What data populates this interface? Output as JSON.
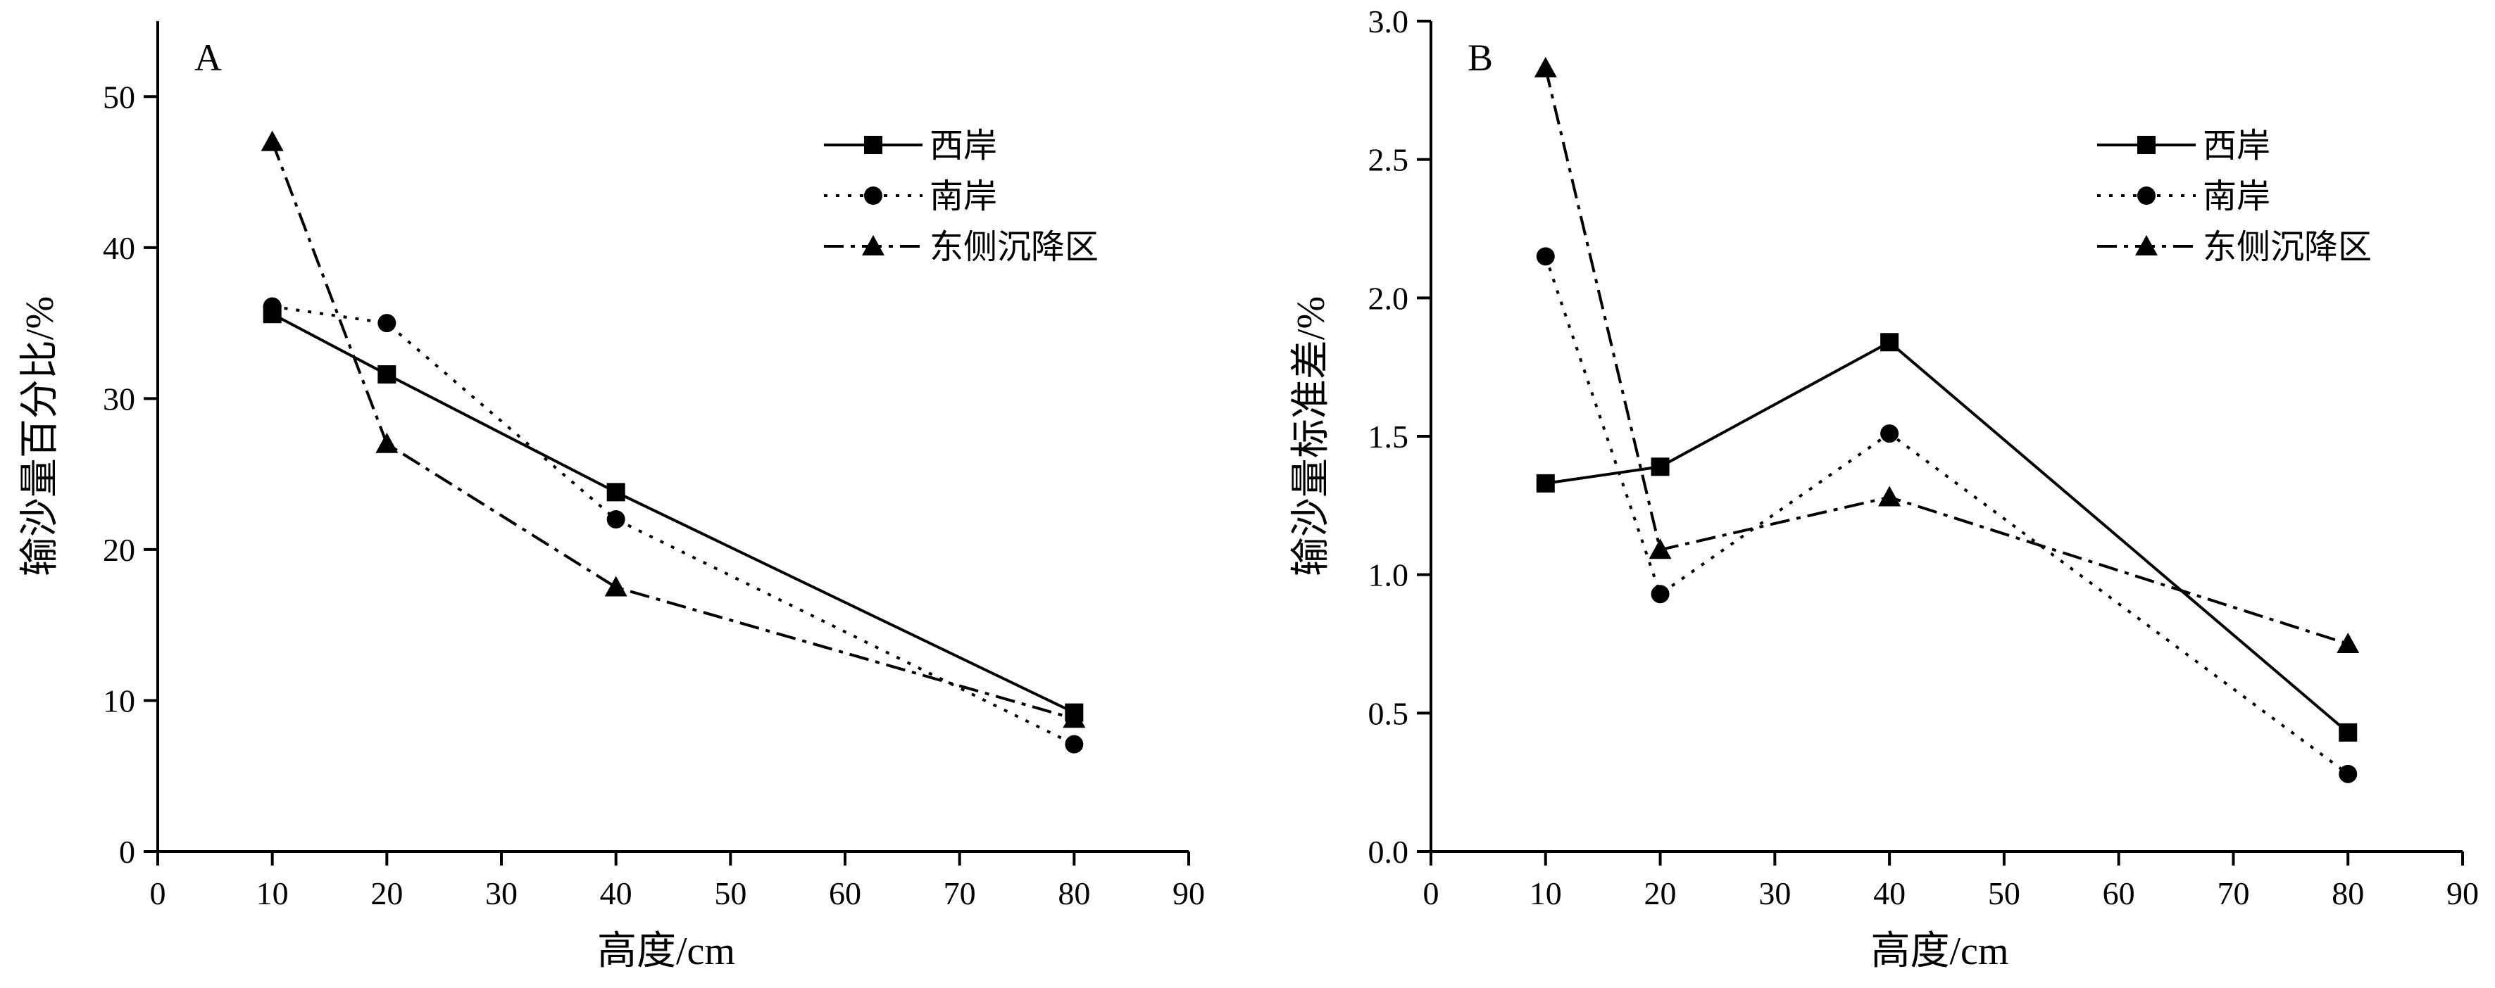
{
  "chart_data": [
    {
      "panel": "A",
      "type": "line",
      "xlabel": "高度/cm",
      "ylabel": "输沙量百分比/%",
      "xlim": [
        0,
        90
      ],
      "ylim": [
        0,
        55
      ],
      "xticks": [
        0,
        10,
        20,
        30,
        40,
        50,
        60,
        70,
        80,
        90
      ],
      "yticks": [
        0,
        10,
        20,
        30,
        40,
        50
      ],
      "legend_position": "top-right",
      "x": [
        10,
        20,
        40,
        80
      ],
      "series": [
        {
          "name": "西岸",
          "values": [
            35.6,
            31.6,
            23.8,
            9.2
          ],
          "marker": "square",
          "line": "solid"
        },
        {
          "name": "南岸",
          "values": [
            36.1,
            35.0,
            22.0,
            7.1
          ],
          "marker": "circle",
          "line": "dotted"
        },
        {
          "name": "东侧沉降区",
          "values": [
            47.0,
            27.0,
            17.5,
            8.8
          ],
          "marker": "triangle",
          "line": "dashdot"
        }
      ]
    },
    {
      "panel": "B",
      "type": "line",
      "xlabel": "高度/cm",
      "ylabel": "输沙量标准差/%",
      "xlim": [
        0,
        90
      ],
      "ylim": [
        0,
        3.0
      ],
      "xticks": [
        0,
        10,
        20,
        30,
        40,
        50,
        60,
        70,
        80,
        90
      ],
      "yticks": [
        0.0,
        0.5,
        1.0,
        1.5,
        2.0,
        2.5,
        3.0
      ],
      "legend_position": "top-right",
      "x": [
        10,
        20,
        40,
        80
      ],
      "series": [
        {
          "name": "西岸",
          "values": [
            1.33,
            1.39,
            1.84,
            0.43
          ],
          "marker": "square",
          "line": "solid"
        },
        {
          "name": "南岸",
          "values": [
            2.15,
            0.93,
            1.51,
            0.28
          ],
          "marker": "circle",
          "line": "dotted"
        },
        {
          "name": "东侧沉降区",
          "values": [
            2.83,
            1.09,
            1.28,
            0.75
          ],
          "marker": "triangle",
          "line": "dashdot"
        }
      ]
    }
  ]
}
